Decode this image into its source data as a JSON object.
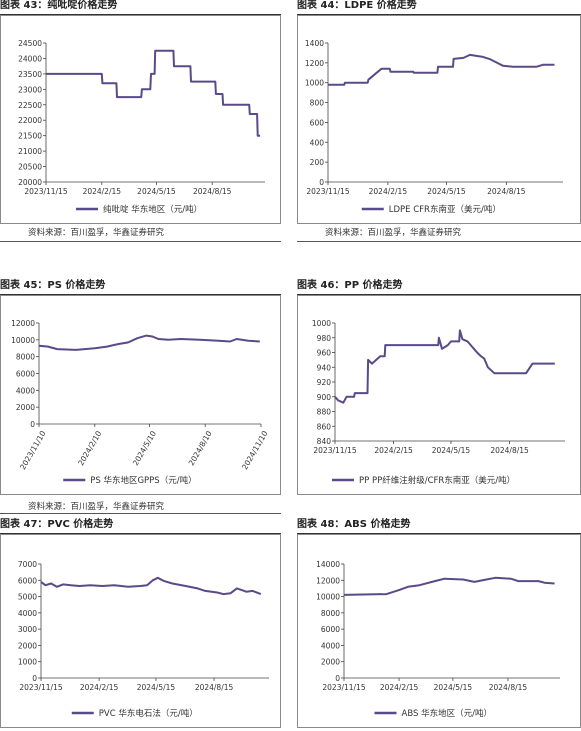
{
  "colors": {
    "series": "#5a4a87",
    "axis": "#444444",
    "border": "#8a8a8a"
  },
  "panels": [
    {
      "title": "图表 43：纯吡啶价格走势",
      "legend": "纯吡啶  华东地区（元/吨）",
      "source": "资料来源：百川盈孚，华鑫证券研究"
    },
    {
      "title": "图表 44：LDPE 价格走势",
      "legend": "LDPE CFR东南亚（美元/吨）",
      "source": "资料来源：百川盈孚，华鑫证券研究"
    },
    {
      "title": "图表 45：PS 价格走势",
      "legend": "PS  华东地区GPPS（元/吨）",
      "source": "资料来源：百川盈孚，华鑫证券研究"
    },
    {
      "title": "图表 46：PP 价格走势",
      "legend": "PP  PP纤维注射级/CFR东南亚（美元/吨）",
      "source": ""
    },
    {
      "title": "图表 47：PVC 价格走势",
      "legend": "PVC  华东电石法（元/吨）",
      "source": ""
    },
    {
      "title": "图表 48：ABS 价格走势",
      "legend": "ABS  华东地区（元/吨）",
      "source": ""
    }
  ],
  "chart_data": [
    {
      "type": "line",
      "xlim": [
        "2023-11-15",
        "2024-11-10"
      ],
      "xticks": [
        "2023/11/15",
        "2024/2/15",
        "2024/5/15",
        "2024/8/15"
      ],
      "ylim": [
        20000,
        24500
      ],
      "yticks": [
        20000,
        20500,
        21000,
        21500,
        22000,
        22500,
        23000,
        23500,
        24000,
        24500
      ],
      "series": [
        {
          "name": "纯吡啶  华东地区（元/吨）",
          "points": [
            [
              "2023-11-15",
              23500
            ],
            [
              "2024-02-15",
              23500
            ],
            [
              "2024-02-16",
              23200
            ],
            [
              "2024-03-10",
              23200
            ],
            [
              "2024-03-11",
              22750
            ],
            [
              "2024-04-20",
              22750
            ],
            [
              "2024-04-21",
              23000
            ],
            [
              "2024-05-05",
              23000
            ],
            [
              "2024-05-06",
              23500
            ],
            [
              "2024-05-12",
              23500
            ],
            [
              "2024-05-13",
              24250
            ],
            [
              "2024-06-12",
              24250
            ],
            [
              "2024-06-13",
              23750
            ],
            [
              "2024-07-10",
              23750
            ],
            [
              "2024-07-11",
              23250
            ],
            [
              "2024-08-20",
              23250
            ],
            [
              "2024-08-21",
              22850
            ],
            [
              "2024-09-01",
              22850
            ],
            [
              "2024-09-02",
              22500
            ],
            [
              "2024-10-15",
              22500
            ],
            [
              "2024-10-16",
              22200
            ],
            [
              "2024-10-28",
              22200
            ],
            [
              "2024-10-29",
              21500
            ],
            [
              "2024-11-02",
              21500
            ]
          ]
        }
      ]
    },
    {
      "type": "line",
      "xlim": [
        "2023-11-15",
        "2024-11-10"
      ],
      "xticks": [
        "2023/11/15",
        "2024/2/15",
        "2024/5/15",
        "2024/8/15"
      ],
      "ylim": [
        0,
        1400
      ],
      "yticks": [
        0,
        200,
        400,
        600,
        800,
        1000,
        1200,
        1400
      ],
      "series": [
        {
          "name": "LDPE CFR东南亚（美元/吨）",
          "points": [
            [
              "2023-11-15",
              980
            ],
            [
              "2023-12-10",
              980
            ],
            [
              "2023-12-11",
              1000
            ],
            [
              "2024-01-15",
              1000
            ],
            [
              "2024-01-16",
              1030
            ],
            [
              "2024-01-25",
              1080
            ],
            [
              "2024-02-05",
              1140
            ],
            [
              "2024-02-18",
              1140
            ],
            [
              "2024-02-19",
              1110
            ],
            [
              "2024-03-25",
              1110
            ],
            [
              "2024-03-26",
              1100
            ],
            [
              "2024-05-01",
              1100
            ],
            [
              "2024-05-02",
              1160
            ],
            [
              "2024-05-25",
              1160
            ],
            [
              "2024-05-26",
              1240
            ],
            [
              "2024-06-10",
              1250
            ],
            [
              "2024-06-20",
              1280
            ],
            [
              "2024-07-10",
              1260
            ],
            [
              "2024-07-20",
              1240
            ],
            [
              "2024-08-01",
              1200
            ],
            [
              "2024-08-10",
              1170
            ],
            [
              "2024-08-25",
              1160
            ],
            [
              "2024-09-30",
              1160
            ],
            [
              "2024-10-10",
              1180
            ],
            [
              "2024-10-28",
              1180
            ]
          ]
        }
      ]
    },
    {
      "type": "line",
      "xlim": [
        "2023-11-10",
        "2024-11-10"
      ],
      "xticks": [
        "2023/11/10",
        "2024/2/10",
        "2024/5/10",
        "2024/8/10",
        "2024/11/10"
      ],
      "ylim": [
        0,
        12000
      ],
      "yticks": [
        0,
        2000,
        4000,
        6000,
        8000,
        10000,
        12000
      ],
      "series": [
        {
          "name": "PS  华东地区GPPS（元/吨）",
          "points": [
            [
              "2023-11-10",
              9300
            ],
            [
              "2023-11-25",
              9200
            ],
            [
              "2023-12-10",
              8900
            ],
            [
              "2024-01-10",
              8800
            ],
            [
              "2024-02-10",
              9000
            ],
            [
              "2024-03-01",
              9200
            ],
            [
              "2024-03-20",
              9500
            ],
            [
              "2024-04-05",
              9700
            ],
            [
              "2024-04-20",
              10200
            ],
            [
              "2024-05-05",
              10500
            ],
            [
              "2024-05-15",
              10400
            ],
            [
              "2024-05-25",
              10100
            ],
            [
              "2024-06-10",
              10000
            ],
            [
              "2024-07-01",
              10100
            ],
            [
              "2024-08-01",
              10000
            ],
            [
              "2024-09-01",
              9900
            ],
            [
              "2024-09-20",
              9800
            ],
            [
              "2024-10-01",
              10100
            ],
            [
              "2024-10-20",
              9900
            ],
            [
              "2024-11-08",
              9800
            ]
          ]
        }
      ]
    },
    {
      "type": "line",
      "xlim": [
        "2023-11-15",
        "2024-11-10"
      ],
      "xticks": [
        "2023/11/15",
        "2024/2/15",
        "2024/5/15",
        "2024/8/15"
      ],
      "ylim": [
        840,
        1000
      ],
      "yticks": [
        840,
        860,
        880,
        900,
        920,
        940,
        960,
        980,
        1000
      ],
      "series": [
        {
          "name": "PP  PP纤维注射级/CFR东南亚（美元/吨）",
          "points": [
            [
              "2023-11-15",
              900
            ],
            [
              "2023-11-20",
              895
            ],
            [
              "2023-11-28",
              892
            ],
            [
              "2023-12-03",
              900
            ],
            [
              "2023-12-15",
              900
            ],
            [
              "2023-12-16",
              905
            ],
            [
              "2024-01-05",
              905
            ],
            [
              "2024-01-06",
              950
            ],
            [
              "2024-01-12",
              945
            ],
            [
              "2024-01-25",
              955
            ],
            [
              "2024-02-01",
              955
            ],
            [
              "2024-02-02",
              970
            ],
            [
              "2024-04-25",
              970
            ],
            [
              "2024-04-26",
              980
            ],
            [
              "2024-05-01",
              965
            ],
            [
              "2024-05-10",
              970
            ],
            [
              "2024-05-15",
              975
            ],
            [
              "2024-05-28",
              975
            ],
            [
              "2024-05-29",
              990
            ],
            [
              "2024-06-02",
              978
            ],
            [
              "2024-06-10",
              975
            ],
            [
              "2024-06-15",
              970
            ],
            [
              "2024-06-20",
              965
            ],
            [
              "2024-06-25",
              960
            ],
            [
              "2024-07-01",
              955
            ],
            [
              "2024-07-06",
              952
            ],
            [
              "2024-07-12",
              940
            ],
            [
              "2024-07-22",
              932
            ],
            [
              "2024-09-10",
              932
            ],
            [
              "2024-09-20",
              945
            ],
            [
              "2024-10-25",
              945
            ]
          ]
        }
      ]
    },
    {
      "type": "line",
      "xlim": [
        "2023-11-15",
        "2024-11-10"
      ],
      "xticks": [
        "2023/11/15",
        "2024/2/15",
        "2024/5/15",
        "2024/8/15"
      ],
      "ylim": [
        0,
        7000
      ],
      "yticks": [
        0,
        1000,
        2000,
        3000,
        4000,
        5000,
        6000,
        7000
      ],
      "series": [
        {
          "name": "PVC  华东电石法（元/吨）",
          "points": [
            [
              "2023-11-15",
              5900
            ],
            [
              "2023-11-22",
              5700
            ],
            [
              "2023-12-01",
              5800
            ],
            [
              "2023-12-10",
              5600
            ],
            [
              "2023-12-20",
              5750
            ],
            [
              "2024-01-01",
              5700
            ],
            [
              "2024-01-15",
              5650
            ],
            [
              "2024-02-01",
              5700
            ],
            [
              "2024-02-20",
              5650
            ],
            [
              "2024-03-10",
              5700
            ],
            [
              "2024-04-01",
              5600
            ],
            [
              "2024-04-20",
              5650
            ],
            [
              "2024-05-01",
              5700
            ],
            [
              "2024-05-10",
              6000
            ],
            [
              "2024-05-18",
              6150
            ],
            [
              "2024-05-28",
              5950
            ],
            [
              "2024-06-10",
              5800
            ],
            [
              "2024-07-01",
              5650
            ],
            [
              "2024-07-20",
              5500
            ],
            [
              "2024-08-01",
              5350
            ],
            [
              "2024-08-20",
              5250
            ],
            [
              "2024-08-30",
              5150
            ],
            [
              "2024-09-10",
              5200
            ],
            [
              "2024-09-20",
              5500
            ],
            [
              "2024-09-28",
              5400
            ],
            [
              "2024-10-05",
              5300
            ],
            [
              "2024-10-15",
              5350
            ],
            [
              "2024-10-28",
              5150
            ]
          ]
        }
      ]
    },
    {
      "type": "line",
      "xlim": [
        "2023-11-15",
        "2024-11-10"
      ],
      "xticks": [
        "2023/11/15",
        "2024/2/15",
        "2024/5/15",
        "2024/8/15"
      ],
      "ylim": [
        0,
        14000
      ],
      "yticks": [
        0,
        2000,
        4000,
        6000,
        8000,
        10000,
        12000,
        14000
      ],
      "series": [
        {
          "name": "ABS  华东地区（元/吨）",
          "points": [
            [
              "2023-11-15",
              10200
            ],
            [
              "2024-01-25",
              10300
            ],
            [
              "2024-02-15",
              10800
            ],
            [
              "2024-03-01",
              11200
            ],
            [
              "2024-03-20",
              11400
            ],
            [
              "2024-04-15",
              11900
            ],
            [
              "2024-05-01",
              12200
            ],
            [
              "2024-06-01",
              12100
            ],
            [
              "2024-06-20",
              11800
            ],
            [
              "2024-07-10",
              12100
            ],
            [
              "2024-07-25",
              12300
            ],
            [
              "2024-08-20",
              12200
            ],
            [
              "2024-09-01",
              11900
            ],
            [
              "2024-10-05",
              11900
            ],
            [
              "2024-10-15",
              11700
            ],
            [
              "2024-11-01",
              11600
            ]
          ]
        }
      ]
    }
  ]
}
